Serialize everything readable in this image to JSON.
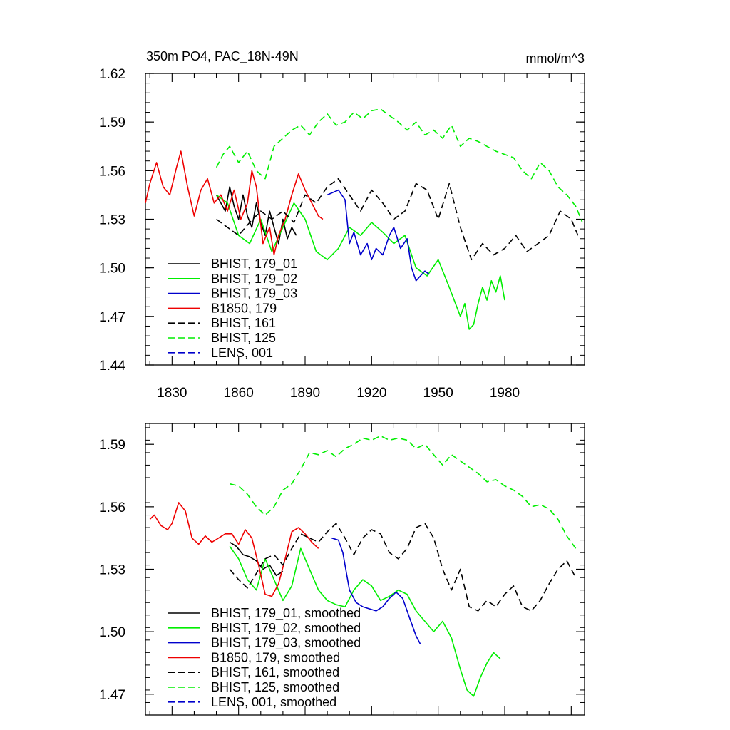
{
  "chart_data": [
    {
      "type": "line",
      "title": "350m PO4, PAC_18N-49N",
      "units": "mmol/m^3",
      "xlim": [
        1818,
        2016
      ],
      "ylim": [
        1.44,
        1.62
      ],
      "yticks": [
        1.44,
        1.47,
        1.5,
        1.53,
        1.56,
        1.59,
        1.62
      ],
      "ytick_labels": [
        "1.44",
        "1.47",
        "1.50",
        "1.53",
        "1.56",
        "1.59",
        "1.62"
      ],
      "xticks": [
        1830,
        1860,
        1890,
        1920,
        1950,
        1980
      ],
      "xtick_labels": [
        "1830",
        "1860",
        "1890",
        "1920",
        "1950",
        "1980"
      ],
      "series": [
        {
          "name": "BHIST, 179_01",
          "color": "#000000",
          "dash": "solid",
          "x": [
            1850,
            1852,
            1854,
            1856,
            1858,
            1860,
            1862,
            1864,
            1866,
            1868,
            1870,
            1872,
            1874,
            1876,
            1878,
            1880,
            1882,
            1884,
            1886
          ],
          "y": [
            1.545,
            1.54,
            1.535,
            1.55,
            1.538,
            1.53,
            1.545,
            1.532,
            1.525,
            1.54,
            1.528,
            1.52,
            1.535,
            1.525,
            1.515,
            1.53,
            1.518,
            1.525,
            1.52
          ]
        },
        {
          "name": "BHIST, 179_02",
          "color": "#00ee00",
          "dash": "solid",
          "x": [
            1850,
            1855,
            1860,
            1865,
            1870,
            1875,
            1880,
            1885,
            1890,
            1895,
            1900,
            1905,
            1910,
            1915,
            1920,
            1925,
            1930,
            1935,
            1940,
            1945,
            1950,
            1955,
            1960,
            1962,
            1964,
            1966,
            1968,
            1970,
            1972,
            1974,
            1976,
            1978,
            1980
          ],
          "y": [
            1.545,
            1.54,
            1.52,
            1.515,
            1.53,
            1.51,
            1.525,
            1.54,
            1.53,
            1.51,
            1.505,
            1.512,
            1.525,
            1.52,
            1.528,
            1.522,
            1.515,
            1.52,
            1.5,
            1.495,
            1.505,
            1.488,
            1.47,
            1.478,
            1.462,
            1.465,
            1.478,
            1.488,
            1.48,
            1.492,
            1.485,
            1.495,
            1.48
          ]
        },
        {
          "name": "BHIST, 179_03",
          "color": "#0000cc",
          "dash": "solid",
          "x": [
            1900,
            1905,
            1908,
            1910,
            1912,
            1915,
            1918,
            1920,
            1922,
            1925,
            1928,
            1930,
            1933,
            1936,
            1938,
            1940,
            1942,
            1944,
            1946
          ],
          "y": [
            1.545,
            1.548,
            1.542,
            1.515,
            1.522,
            1.508,
            1.515,
            1.505,
            1.512,
            1.508,
            1.52,
            1.525,
            1.512,
            1.518,
            1.5,
            1.492,
            1.495,
            1.498,
            1.496
          ]
        },
        {
          "name": "B1850, 179",
          "color": "#ee0000",
          "dash": "solid",
          "x": [
            1818,
            1820,
            1823,
            1826,
            1829,
            1832,
            1834,
            1837,
            1840,
            1843,
            1846,
            1849,
            1852,
            1855,
            1858,
            1861,
            1864,
            1866,
            1868,
            1871,
            1874,
            1876,
            1878,
            1881,
            1884,
            1887,
            1890,
            1893,
            1896,
            1898
          ],
          "y": [
            1.54,
            1.552,
            1.565,
            1.55,
            1.545,
            1.562,
            1.572,
            1.55,
            1.532,
            1.548,
            1.555,
            1.54,
            1.545,
            1.535,
            1.548,
            1.53,
            1.54,
            1.56,
            1.55,
            1.515,
            1.525,
            1.508,
            1.52,
            1.53,
            1.545,
            1.558,
            1.548,
            1.54,
            1.532,
            1.53
          ]
        },
        {
          "name": "BHIST, 161",
          "color": "#000000",
          "dash": "dashed",
          "x": [
            1850,
            1855,
            1860,
            1865,
            1870,
            1875,
            1880,
            1885,
            1890,
            1895,
            1900,
            1905,
            1910,
            1915,
            1920,
            1925,
            1930,
            1935,
            1940,
            1945,
            1950,
            1955,
            1960,
            1965,
            1970,
            1975,
            1980,
            1985,
            1990,
            1995,
            2000,
            2005,
            2010,
            2013
          ],
          "y": [
            1.53,
            1.525,
            1.52,
            1.528,
            1.535,
            1.53,
            1.535,
            1.528,
            1.545,
            1.54,
            1.55,
            1.555,
            1.545,
            1.535,
            1.548,
            1.54,
            1.53,
            1.535,
            1.552,
            1.548,
            1.53,
            1.552,
            1.525,
            1.505,
            1.515,
            1.508,
            1.512,
            1.52,
            1.51,
            1.515,
            1.52,
            1.535,
            1.53,
            1.52
          ]
        },
        {
          "name": "BHIST, 125",
          "color": "#00ee00",
          "dash": "dashed",
          "x": [
            1850,
            1853,
            1856,
            1860,
            1864,
            1868,
            1872,
            1876,
            1880,
            1884,
            1888,
            1892,
            1896,
            1900,
            1904,
            1908,
            1912,
            1916,
            1920,
            1924,
            1928,
            1932,
            1936,
            1940,
            1944,
            1948,
            1952,
            1956,
            1960,
            1964,
            1968,
            1972,
            1976,
            1980,
            1984,
            1988,
            1992,
            1996,
            2000,
            2004,
            2008,
            2012,
            2015
          ],
          "y": [
            1.562,
            1.57,
            1.575,
            1.565,
            1.572,
            1.56,
            1.555,
            1.575,
            1.58,
            1.585,
            1.588,
            1.582,
            1.59,
            1.595,
            1.588,
            1.59,
            1.596,
            1.592,
            1.597,
            1.598,
            1.594,
            1.59,
            1.585,
            1.59,
            1.582,
            1.585,
            1.58,
            1.588,
            1.575,
            1.58,
            1.578,
            1.575,
            1.572,
            1.57,
            1.568,
            1.56,
            1.555,
            1.565,
            1.56,
            1.55,
            1.545,
            1.538,
            1.528
          ]
        },
        {
          "name": "LENS, 001",
          "color": "#0000cc",
          "dash": "dashed",
          "x": [],
          "y": []
        }
      ]
    },
    {
      "type": "line",
      "xlim": [
        1818,
        2016
      ],
      "ylim": [
        1.46,
        1.6
      ],
      "yticks": [
        1.47,
        1.5,
        1.53,
        1.56,
        1.59
      ],
      "ytick_labels": [
        "1.47",
        "1.50",
        "1.53",
        "1.56",
        "1.59"
      ],
      "series": [
        {
          "name": "BHIST, 179_01, smoothed",
          "color": "#000000",
          "dash": "solid",
          "x": [
            1856,
            1859,
            1862,
            1865,
            1868,
            1871,
            1874,
            1877,
            1880
          ],
          "y": [
            1.543,
            1.541,
            1.537,
            1.536,
            1.534,
            1.53,
            1.532,
            1.527,
            1.529
          ]
        },
        {
          "name": "BHIST, 179_02, smoothed",
          "color": "#00ee00",
          "dash": "solid",
          "x": [
            1856,
            1860,
            1864,
            1868,
            1872,
            1876,
            1880,
            1884,
            1888,
            1892,
            1896,
            1900,
            1904,
            1908,
            1912,
            1916,
            1920,
            1924,
            1928,
            1932,
            1936,
            1940,
            1944,
            1948,
            1952,
            1956,
            1960,
            1963,
            1966,
            1969,
            1972,
            1975,
            1978
          ],
          "y": [
            1.541,
            1.535,
            1.525,
            1.52,
            1.535,
            1.525,
            1.515,
            1.522,
            1.54,
            1.53,
            1.52,
            1.515,
            1.513,
            1.512,
            1.52,
            1.525,
            1.522,
            1.515,
            1.517,
            1.52,
            1.518,
            1.51,
            1.505,
            1.5,
            1.505,
            1.497,
            1.482,
            1.472,
            1.469,
            1.478,
            1.485,
            1.49,
            1.487
          ]
        },
        {
          "name": "BHIST, 179_03, smoothed",
          "color": "#0000cc",
          "dash": "solid",
          "x": [
            1902,
            1905,
            1907,
            1910,
            1913,
            1916,
            1919,
            1922,
            1925,
            1928,
            1931,
            1934,
            1937,
            1940,
            1942
          ],
          "y": [
            1.545,
            1.544,
            1.538,
            1.52,
            1.514,
            1.512,
            1.511,
            1.51,
            1.512,
            1.516,
            1.519,
            1.516,
            1.507,
            1.498,
            1.494
          ]
        },
        {
          "name": "B1850, 179, smoothed",
          "color": "#ee0000",
          "dash": "solid",
          "x": [
            1820,
            1822,
            1825,
            1828,
            1830,
            1833,
            1836,
            1839,
            1842,
            1845,
            1848,
            1851,
            1854,
            1857,
            1860,
            1863,
            1866,
            1869,
            1872,
            1875,
            1878,
            1881,
            1884,
            1887,
            1890,
            1893,
            1896
          ],
          "y": [
            1.554,
            1.556,
            1.551,
            1.549,
            1.552,
            1.562,
            1.558,
            1.545,
            1.542,
            1.546,
            1.543,
            1.545,
            1.547,
            1.547,
            1.542,
            1.549,
            1.545,
            1.532,
            1.518,
            1.517,
            1.523,
            1.535,
            1.548,
            1.55,
            1.547,
            1.543,
            1.54
          ]
        },
        {
          "name": "BHIST, 161, smoothed",
          "color": "#000000",
          "dash": "dashed",
          "x": [
            1856,
            1860,
            1864,
            1868,
            1872,
            1876,
            1880,
            1884,
            1888,
            1892,
            1896,
            1900,
            1904,
            1908,
            1912,
            1916,
            1920,
            1924,
            1928,
            1932,
            1936,
            1940,
            1944,
            1948,
            1952,
            1956,
            1960,
            1964,
            1968,
            1972,
            1976,
            1980,
            1984,
            1988,
            1992,
            1996,
            2000,
            2004,
            2008,
            2012
          ],
          "y": [
            1.53,
            1.525,
            1.521,
            1.528,
            1.535,
            1.537,
            1.532,
            1.54,
            1.547,
            1.545,
            1.543,
            1.548,
            1.552,
            1.545,
            1.537,
            1.545,
            1.549,
            1.547,
            1.538,
            1.535,
            1.54,
            1.55,
            1.552,
            1.545,
            1.53,
            1.52,
            1.53,
            1.512,
            1.51,
            1.515,
            1.512,
            1.518,
            1.522,
            1.512,
            1.51,
            1.515,
            1.523,
            1.53,
            1.534,
            1.526
          ]
        },
        {
          "name": "BHIST, 125, smoothed",
          "color": "#00ee00",
          "dash": "dashed",
          "x": [
            1856,
            1860,
            1864,
            1868,
            1872,
            1876,
            1880,
            1884,
            1888,
            1892,
            1896,
            1900,
            1904,
            1908,
            1912,
            1916,
            1920,
            1924,
            1928,
            1932,
            1936,
            1940,
            1944,
            1948,
            1952,
            1956,
            1960,
            1964,
            1968,
            1972,
            1976,
            1980,
            1984,
            1988,
            1992,
            1996,
            2000,
            2004,
            2008,
            2012
          ],
          "y": [
            1.571,
            1.57,
            1.566,
            1.56,
            1.556,
            1.56,
            1.568,
            1.571,
            1.578,
            1.586,
            1.585,
            1.587,
            1.584,
            1.588,
            1.59,
            1.593,
            1.592,
            1.594,
            1.592,
            1.593,
            1.592,
            1.588,
            1.59,
            1.585,
            1.58,
            1.585,
            1.582,
            1.579,
            1.576,
            1.572,
            1.573,
            1.57,
            1.568,
            1.565,
            1.56,
            1.561,
            1.559,
            1.554,
            1.546,
            1.54
          ]
        },
        {
          "name": "LENS, 001, smoothed",
          "color": "#0000cc",
          "dash": "dashed",
          "x": [],
          "y": []
        }
      ]
    }
  ]
}
